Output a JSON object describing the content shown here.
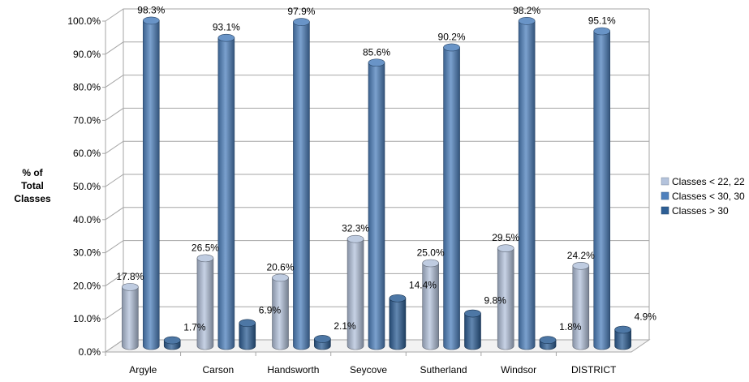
{
  "chart_data": {
    "type": "bar",
    "title": "",
    "xlabel": "",
    "ylabel": [
      "% of",
      "Total",
      "Classes"
    ],
    "ylim": [
      0,
      100
    ],
    "y_ticks": [
      "0.0%",
      "10.0%",
      "20.0%",
      "30.0%",
      "40.0%",
      "50.0%",
      "60.0%",
      "70.0%",
      "80.0%",
      "90.0%",
      "100.0%"
    ],
    "categories": [
      "Argyle",
      "Carson",
      "Handsworth",
      "Seycove",
      "Sutherland",
      "Windsor",
      "DISTRICT"
    ],
    "series": [
      {
        "name": "Classes < 22, 22",
        "color": "#b4c3dc",
        "values": [
          17.8,
          26.5,
          20.6,
          32.3,
          25.0,
          29.5,
          24.2
        ],
        "labels": [
          "17.8%",
          "26.5%",
          "20.6%",
          "32.3%",
          "25.0%",
          "29.5%",
          "24.2%"
        ]
      },
      {
        "name": "Classes < 30, 30",
        "color": "#4f81bd",
        "values": [
          98.3,
          93.1,
          97.9,
          85.6,
          90.2,
          98.2,
          95.1
        ],
        "labels": [
          "98.3%",
          "93.1%",
          "97.9%",
          "85.6%",
          "90.2%",
          "98.2%",
          "95.1%"
        ]
      },
      {
        "name": "Classes > 30",
        "color": "#2e5f95",
        "values": [
          1.7,
          6.9,
          2.1,
          14.4,
          9.8,
          1.8,
          4.9
        ],
        "labels": [
          "1.7%",
          "6.9%",
          "2.1%",
          "14.4%",
          "9.8%",
          "1.8%",
          "4.9%"
        ]
      }
    ],
    "grid": true,
    "legend_position": "right",
    "style": "3d-cylinder"
  }
}
